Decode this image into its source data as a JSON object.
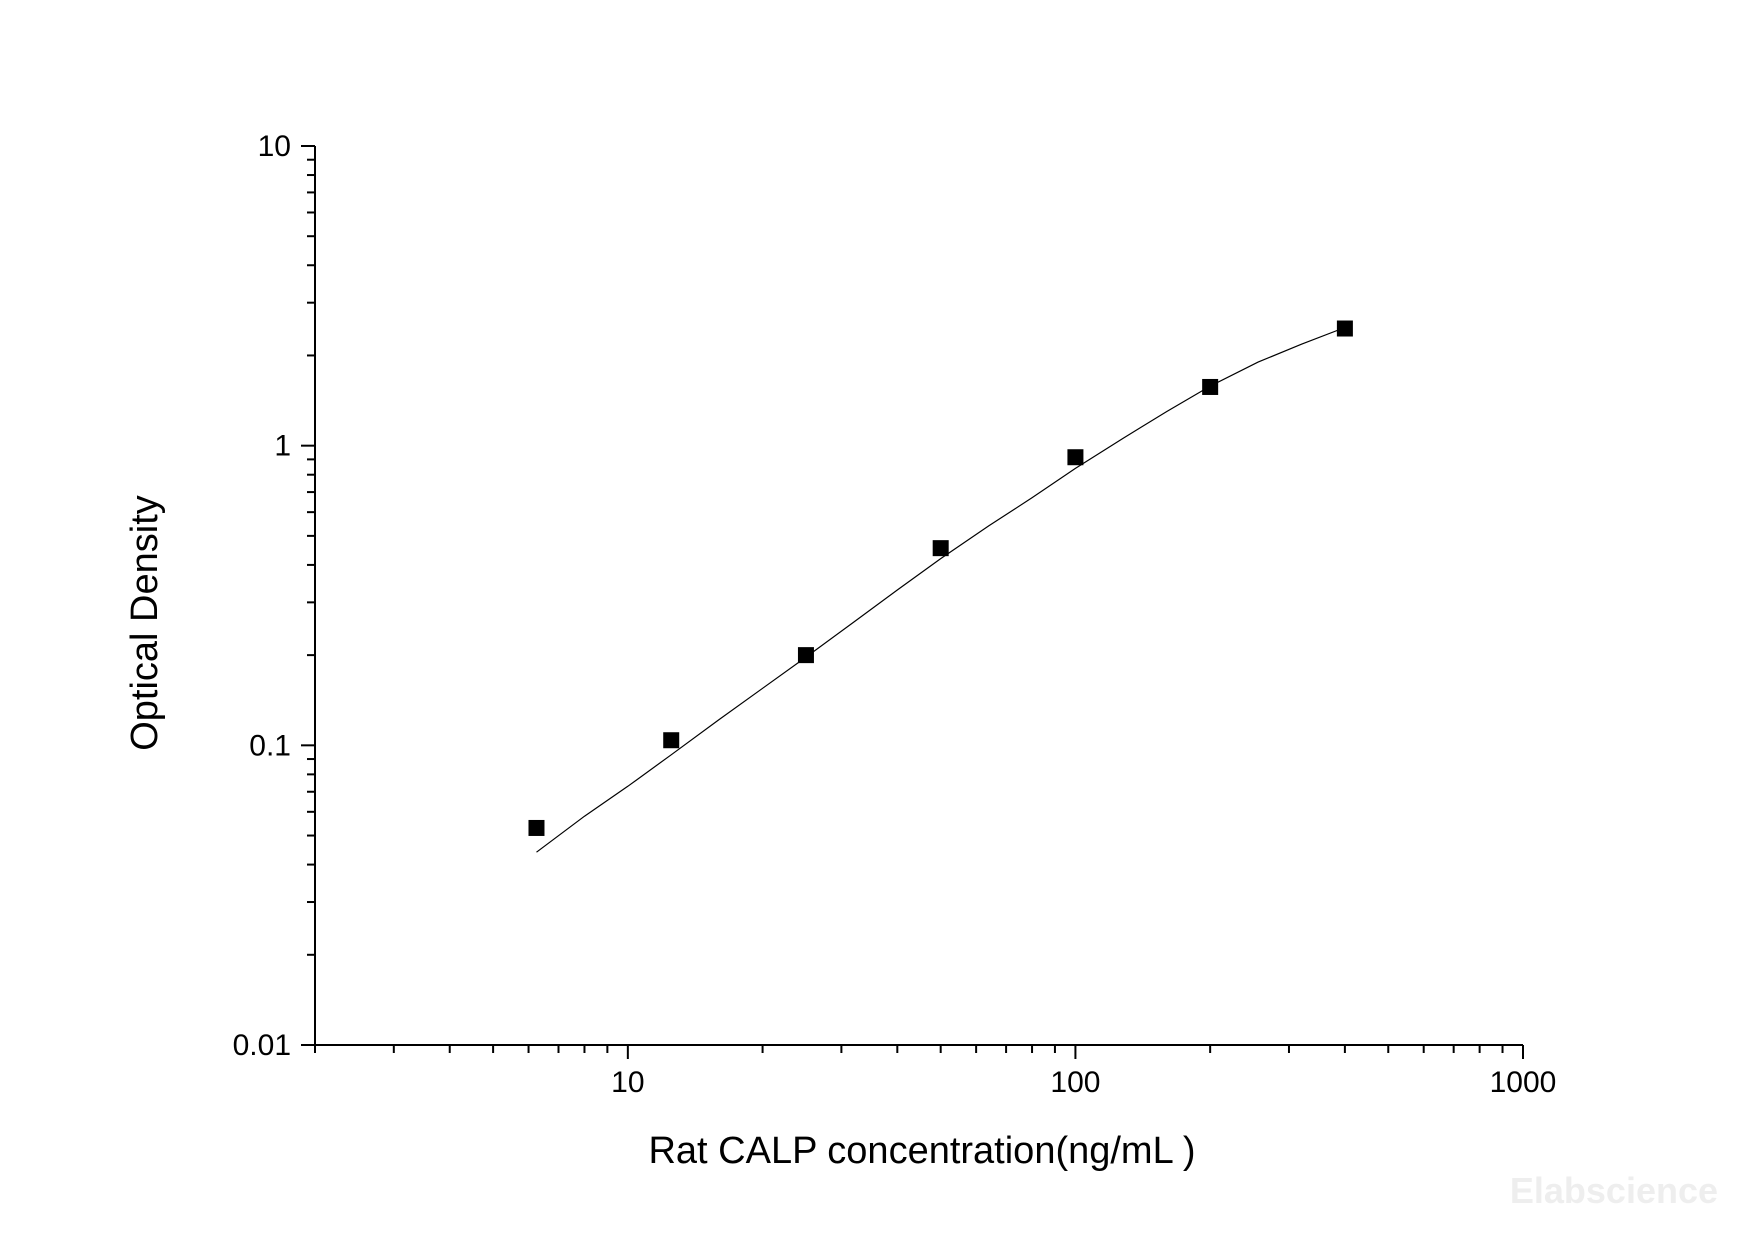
{
  "chart_data": {
    "type": "scatter",
    "xlabel": "Rat CALP concentration(ng/mL )",
    "ylabel": "Optical Density",
    "x_scale": "log",
    "y_scale": "log",
    "xlim": [
      2,
      1000
    ],
    "ylim": [
      0.01,
      10
    ],
    "x_ticks": [
      {
        "value": 10,
        "label": "10"
      },
      {
        "value": 100,
        "label": "100"
      },
      {
        "value": 1000,
        "label": "1000"
      }
    ],
    "y_ticks": [
      {
        "value": 0.01,
        "label": "0.01"
      },
      {
        "value": 0.1,
        "label": "0.1"
      },
      {
        "value": 1,
        "label": "1"
      },
      {
        "value": 10,
        "label": "10"
      }
    ],
    "grid": false,
    "points": {
      "x": [
        6.25,
        12.5,
        25,
        50,
        100,
        200,
        400
      ],
      "y": [
        0.053,
        0.104,
        0.2,
        0.455,
        0.915,
        1.57,
        2.46
      ]
    },
    "fit_curve": {
      "x": [
        6.25,
        8,
        10,
        12.5,
        16,
        20,
        25,
        32,
        40,
        50,
        64,
        80,
        100,
        128,
        160,
        200,
        256,
        320,
        400
      ],
      "y": [
        0.044,
        0.058,
        0.073,
        0.093,
        0.122,
        0.155,
        0.197,
        0.258,
        0.33,
        0.42,
        0.54,
        0.67,
        0.84,
        1.06,
        1.3,
        1.58,
        1.9,
        2.18,
        2.48
      ]
    },
    "marker_color": "#000000",
    "line_color": "#000000"
  },
  "watermark": "Elabscience"
}
